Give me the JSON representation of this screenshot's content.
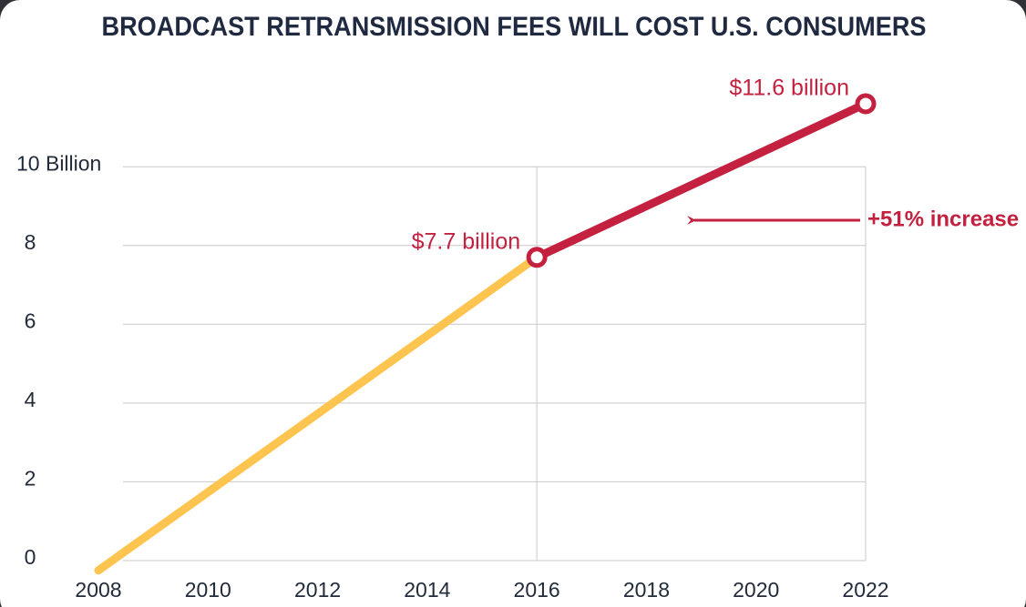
{
  "chart_data": {
    "type": "line",
    "title": "BROADCAST RETRANSMISSION FEES WILL COST U.S. CONSUMERS",
    "series": [
      {
        "name": "2008-2016",
        "color": "#fdc54f",
        "x": [
          2008,
          2016
        ],
        "values": [
          -0.25,
          7.7
        ]
      },
      {
        "name": "2016-2022",
        "color": "#c3213f",
        "x": [
          2016,
          2022
        ],
        "values": [
          7.7,
          11.6
        ],
        "value_labels": [
          "$7.7 billion",
          "$11.6 billion"
        ]
      }
    ],
    "annotations": [
      {
        "text": "+51% increase",
        "color": "#c3213f"
      }
    ],
    "xlim": [
      2008,
      2022
    ],
    "xticks": [
      2008,
      2010,
      2012,
      2014,
      2016,
      2018,
      2020,
      2022
    ],
    "ylim": [
      -0.5,
      12.5
    ],
    "yticks": [
      0,
      2,
      4,
      6,
      8,
      {
        "value": 10,
        "label": "10 Billion"
      }
    ],
    "grid": true
  }
}
